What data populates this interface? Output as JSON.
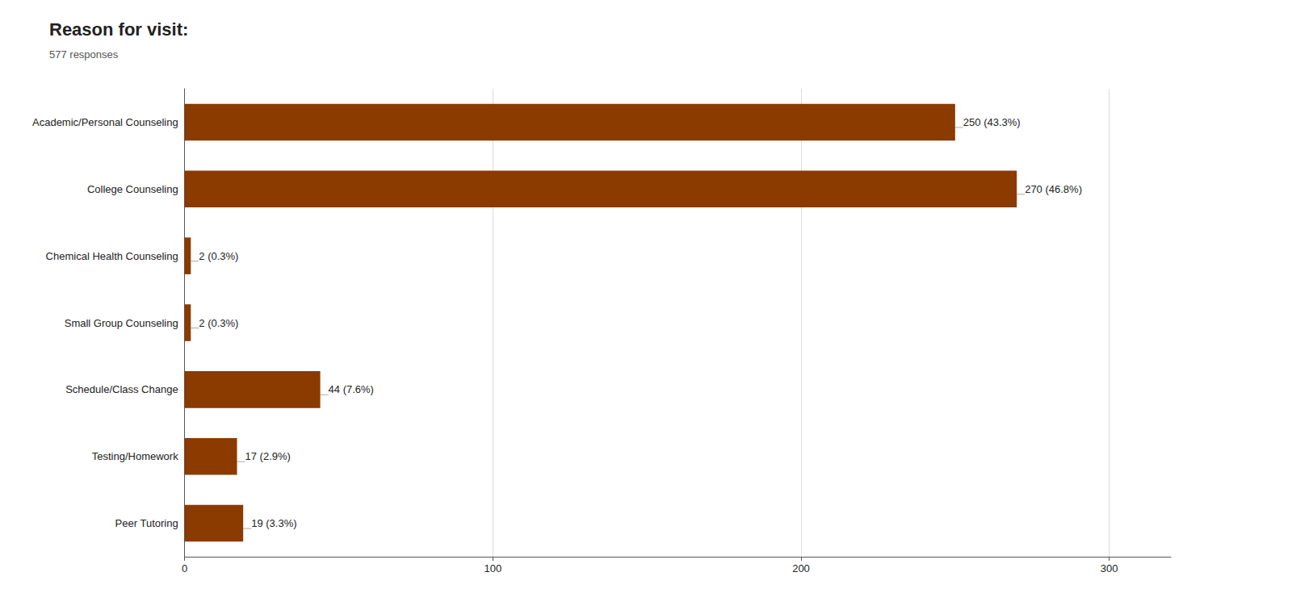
{
  "chart_data": {
    "type": "bar",
    "orientation": "horizontal",
    "title": "Reason for visit:",
    "subtitle": "577 responses",
    "categories": [
      "Academic/Personal Counseling",
      "College Counseling",
      "Chemical Health Counseling",
      "Small Group Counseling",
      "Schedule/Class Change",
      "Testing/Homework",
      "Peer Tutoring"
    ],
    "values": [
      250,
      270,
      2,
      2,
      44,
      17,
      19
    ],
    "value_labels": [
      "250 (43.3%)",
      "270 (46.8%)",
      "2 (0.3%)",
      "2 (0.3%)",
      "44 (7.6%)",
      "17 (2.9%)",
      "19 (3.3%)"
    ],
    "data_labels": true,
    "color": "#8B3A00",
    "xlim": [
      0,
      320
    ],
    "xticks": [
      0,
      100,
      200,
      300
    ],
    "grid": true
  }
}
